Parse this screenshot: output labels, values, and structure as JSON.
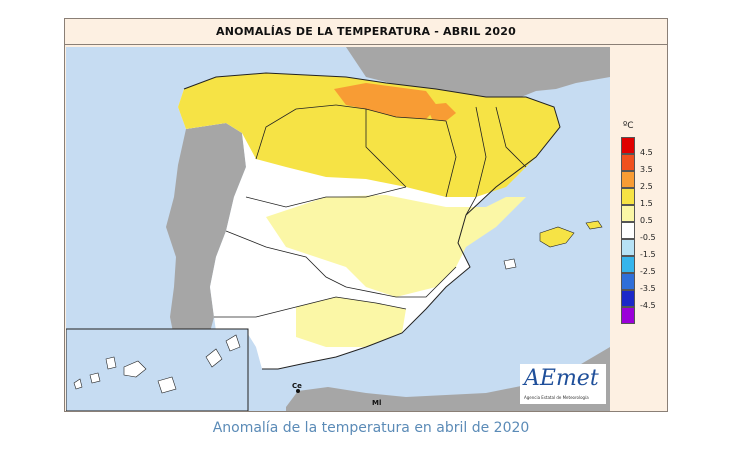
{
  "map": {
    "title": "ANOMALÍAS DE LA TEMPERATURA - ABRIL 2020",
    "cities": [
      {
        "label": "Ce"
      },
      {
        "label": "Ml"
      }
    ],
    "logo": {
      "brand_text": "AEmet",
      "subtitle": "Agencia Estatal de Meteorología"
    }
  },
  "legend": {
    "unit": "ºC",
    "items": [
      {
        "label": "4.5",
        "color": "#e00000"
      },
      {
        "label": "3.5",
        "color": "#f0501e"
      },
      {
        "label": "2.5",
        "color": "#f89c34"
      },
      {
        "label": "1.5",
        "color": "#f6e345"
      },
      {
        "label": "0.5",
        "color": "#fbf7a6"
      },
      {
        "label": "-0.5",
        "color": "#ffffff"
      },
      {
        "label": "-1.5",
        "color": "#b7e2f5"
      },
      {
        "label": "-2.5",
        "color": "#36b5ec"
      },
      {
        "label": "-3.5",
        "color": "#2f6fd9"
      },
      {
        "label": "-4.5",
        "color": "#1b28c9"
      },
      {
        "label": "",
        "color": "#9b00d9"
      }
    ]
  },
  "colors": {
    "sea": "#c6dcf2",
    "land_other": "#a6a6a6",
    "border": "#222222"
  },
  "caption": "Anomalía de la temperatura en abril de 2020"
}
